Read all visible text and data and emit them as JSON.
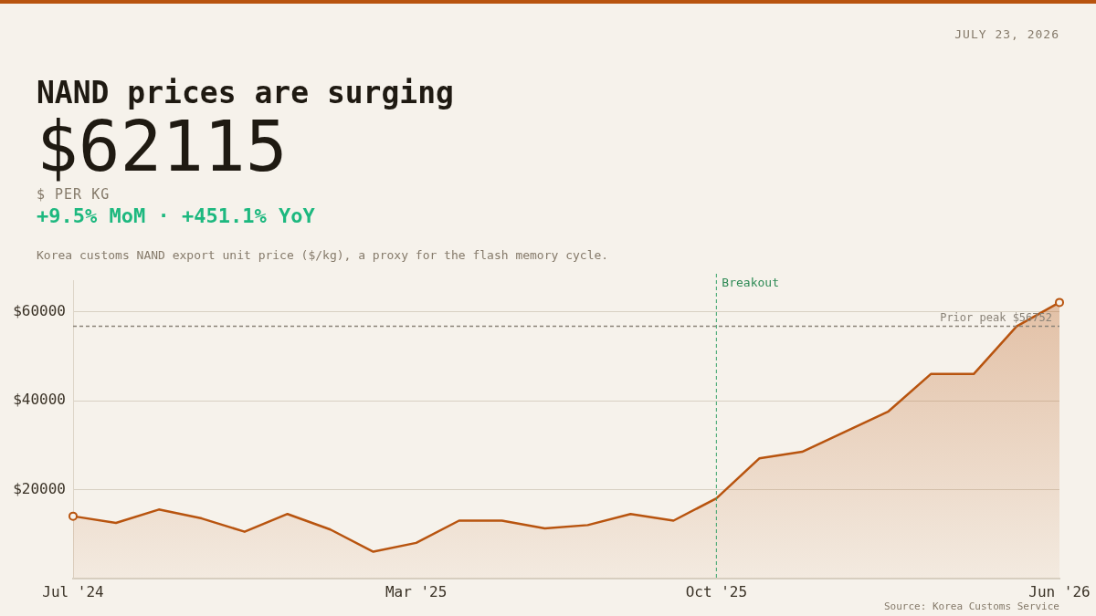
{
  "chart_data": {
    "type": "area",
    "title": "NAND prices are surging",
    "annotations": [
      "$62115",
      "$ PER KG",
      "+9.5% MoM · +451.1% YoY",
      "Korea customs NAND export unit price ($/kg), a proxy for the flash memory cycle.",
      "JULY 23, 2026",
      "Source: Korea Customs Service"
    ],
    "categories": [
      "Jul '24",
      null,
      null,
      null,
      null,
      null,
      null,
      null,
      "Mar '25",
      null,
      null,
      null,
      null,
      null,
      null,
      "Oct '25",
      null,
      null,
      null,
      null,
      null,
      null,
      null,
      "Jun '26"
    ],
    "series": [
      {
        "color": "#b8540f",
        "values": [
          14000,
          12500,
          15500,
          13500,
          10500,
          14500,
          11000,
          6000,
          8000,
          13000,
          13000,
          11271,
          12000,
          14500,
          13000,
          18000,
          27000,
          28500,
          33000,
          37500,
          46000,
          46000,
          56726,
          62115
        ]
      }
    ],
    "ylim": [
      0,
      67000
    ],
    "yticks": [
      {
        "value": 20000,
        "label": "$20000"
      },
      {
        "value": 40000,
        "label": "$40000"
      },
      {
        "value": 60000,
        "label": "$60000"
      }
    ],
    "grid": "y",
    "legend": false,
    "ref_lines": [
      {
        "axis": "x",
        "value": "Oct '25",
        "label": "Breakout",
        "color": "#3aa36b",
        "line_style": "dashed"
      },
      {
        "axis": "y",
        "value": 56752,
        "label": "Prior peak $56752",
        "color": "#8a8378",
        "line_style": "dashed"
      }
    ]
  }
}
